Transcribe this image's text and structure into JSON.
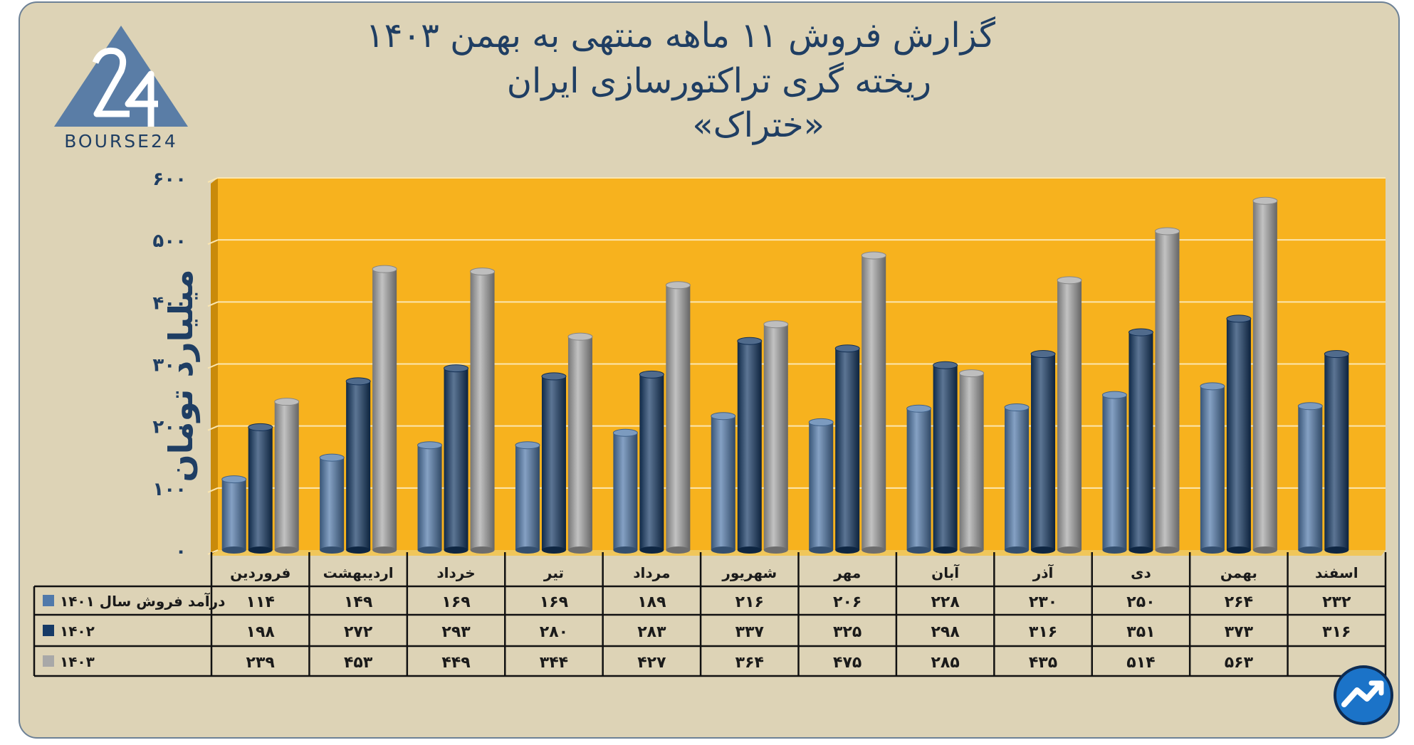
{
  "title": {
    "line1": "گزارش  فروش ۱۱ ماهه منتهی به بهمن ۱۴۰۳",
    "line2": "ریخته گری تراکتورسازی ایران",
    "line3": "«ختراک»"
  },
  "logo": {
    "text": "BOURSE24",
    "mark": "24",
    "icon": "bourse24-triangle-logo"
  },
  "badge": {
    "icon": "trend-up-circle-icon"
  },
  "colors": {
    "background": "#ddd3b6",
    "plot": "#f7b21e",
    "series_1401": "#5079aa",
    "series_1402": "#163a66",
    "series_1403": "#a8a8a8",
    "text": "#1f3e63"
  },
  "chart_data": {
    "type": "bar",
    "ylabel": "میلیارد تومان",
    "ylim": [
      0,
      600
    ],
    "yticks": [
      "۰",
      "۱۰۰",
      "۲۰۰",
      "۳۰۰",
      "۴۰۰",
      "۵۰۰",
      "۶۰۰"
    ],
    "ytick_values": [
      0,
      100,
      200,
      300,
      400,
      500,
      600
    ],
    "grid": true,
    "categories": [
      "فروردین",
      "اردیبهشت",
      "خرداد",
      "تیر",
      "مرداد",
      "شهریور",
      "مهر",
      "آبان",
      "آذر",
      "دی",
      "بهمن",
      "اسفند"
    ],
    "series": [
      {
        "name": "درآمد فروش سال ۱۴۰۱",
        "color": "#5079aa",
        "values": [
          114,
          149,
          169,
          169,
          189,
          216,
          206,
          228,
          230,
          250,
          264,
          232
        ],
        "labels": [
          "۱۱۴",
          "۱۴۹",
          "۱۶۹",
          "۱۶۹",
          "۱۸۹",
          "۲۱۶",
          "۲۰۶",
          "۲۲۸",
          "۲۳۰",
          "۲۵۰",
          "۲۶۴",
          "۲۳۲"
        ]
      },
      {
        "name": "۱۴۰۲",
        "color": "#163a66",
        "values": [
          198,
          272,
          293,
          280,
          283,
          337,
          325,
          298,
          316,
          351,
          373,
          316
        ],
        "labels": [
          "۱۹۸",
          "۲۷۲",
          "۲۹۳",
          "۲۸۰",
          "۲۸۳",
          "۳۳۷",
          "۳۲۵",
          "۲۹۸",
          "۳۱۶",
          "۳۵۱",
          "۳۷۳",
          "۳۱۶"
        ]
      },
      {
        "name": "۱۴۰۳",
        "color": "#a8a8a8",
        "values": [
          239,
          453,
          449,
          344,
          427,
          364,
          475,
          285,
          435,
          514,
          563,
          null
        ],
        "labels": [
          "۲۳۹",
          "۴۵۳",
          "۴۴۹",
          "۳۴۴",
          "۴۲۷",
          "۳۶۴",
          "۴۷۵",
          "۲۸۵",
          "۴۳۵",
          "۵۱۴",
          "۵۶۳",
          ""
        ]
      }
    ]
  }
}
